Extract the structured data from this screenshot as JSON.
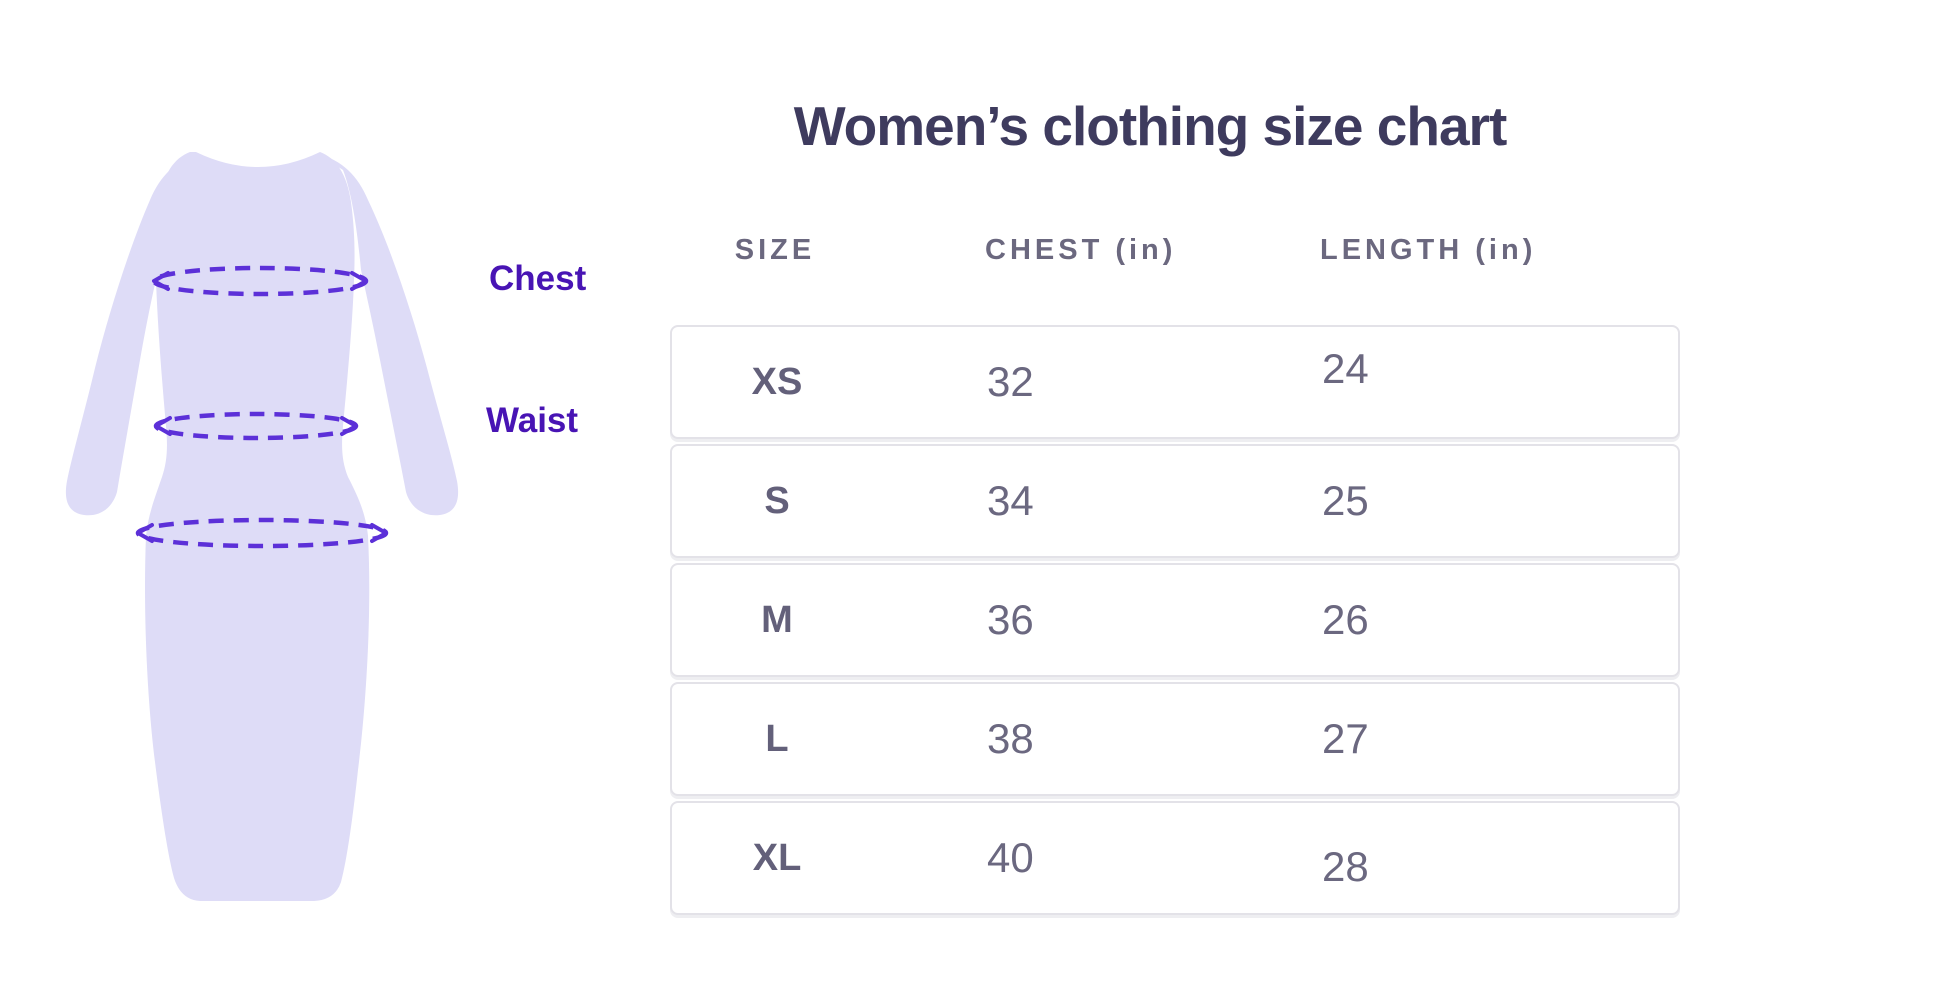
{
  "title": "Women’s clothing size chart",
  "colors": {
    "background": "#ffffff",
    "title_text": "#3e3b5e",
    "header_text": "#6b687f",
    "cell_text": "#6b6880",
    "row_border": "#e3e2e8",
    "dress_fill": "#dedcf7",
    "measure_dash": "#5c30d8",
    "measure_label": "#4814b4"
  },
  "figure": {
    "labels": {
      "chest": "Chest",
      "waist": "Waist"
    },
    "measure_lines": [
      "chest",
      "waist",
      "hip"
    ]
  },
  "table": {
    "headers": [
      "SIZE",
      "CHEST (in)",
      "LENGTH (in)"
    ],
    "rows": [
      {
        "size": "XS",
        "chest": "32",
        "length": "24"
      },
      {
        "size": "S",
        "chest": "34",
        "length": "25"
      },
      {
        "size": "M",
        "chest": "36",
        "length": "26"
      },
      {
        "size": "L",
        "chest": "38",
        "length": "27"
      },
      {
        "size": "XL",
        "chest": "40",
        "length": "28"
      }
    ]
  },
  "chart_data": {
    "type": "table",
    "title": "Women’s clothing size chart",
    "columns": [
      "SIZE",
      "CHEST (in)",
      "LENGTH (in)"
    ],
    "rows": [
      [
        "XS",
        32,
        24
      ],
      [
        "S",
        34,
        25
      ],
      [
        "M",
        36,
        26
      ],
      [
        "L",
        38,
        27
      ],
      [
        "XL",
        40,
        28
      ]
    ],
    "units": "inches",
    "annotations": [
      "Chest",
      "Waist"
    ],
    "legend": "none",
    "notes": "Dress illustration with dashed measurement ellipses at chest, waist and hip; only chest and waist are labeled."
  }
}
